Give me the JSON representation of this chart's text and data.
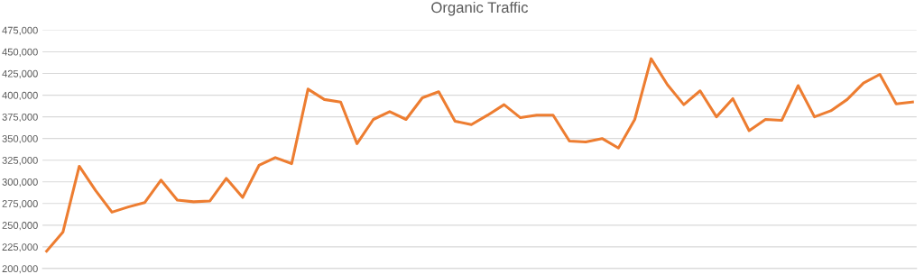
{
  "chart_data": {
    "type": "line",
    "title": "Organic Traffic",
    "categories": [
      null,
      null,
      null,
      null,
      null,
      null,
      null,
      null,
      null,
      null,
      null,
      null,
      null,
      null,
      null,
      null,
      null,
      null,
      null,
      null,
      null,
      null,
      null,
      null,
      null,
      null,
      null,
      null,
      null,
      null,
      null,
      null,
      null,
      null,
      null,
      null,
      null,
      null,
      null,
      null,
      null,
      null,
      null,
      null,
      null,
      null,
      null,
      null,
      null,
      null,
      null,
      null,
      null,
      null
    ],
    "series": [
      {
        "color": "#ed7d31",
        "values": [
          220000,
          242000,
          318000,
          290000,
          265000,
          271000,
          276000,
          302000,
          279000,
          277000,
          278000,
          304000,
          282000,
          319000,
          328000,
          321000,
          407000,
          395000,
          392000,
          344000,
          372000,
          381000,
          372000,
          397000,
          404000,
          370000,
          366000,
          377000,
          389000,
          374000,
          377000,
          377000,
          347000,
          346000,
          350000,
          339000,
          372000,
          442000,
          412000,
          389000,
          405000,
          375000,
          396000,
          359000,
          372000,
          371000,
          411000,
          375000,
          382000,
          395000,
          414000,
          424000,
          390000,
          392000
        ]
      }
    ],
    "ylim": [
      200000,
      475000
    ],
    "yticks": [
      {
        "value": 200000,
        "label": "200,000"
      },
      {
        "value": 225000,
        "label": "225,000"
      },
      {
        "value": 250000,
        "label": "250,000"
      },
      {
        "value": 275000,
        "label": "275,000"
      },
      {
        "value": 300000,
        "label": "300,000"
      },
      {
        "value": 325000,
        "label": "325,000"
      },
      {
        "value": 350000,
        "label": "350,000"
      },
      {
        "value": 375000,
        "label": "375,000"
      },
      {
        "value": 400000,
        "label": "400,000"
      },
      {
        "value": 425000,
        "label": "425,000"
      },
      {
        "value": 450000,
        "label": "450,000"
      },
      {
        "value": 475000,
        "label": "475,000"
      }
    ],
    "grid": "y",
    "marker": "none",
    "line_style": "solid"
  }
}
